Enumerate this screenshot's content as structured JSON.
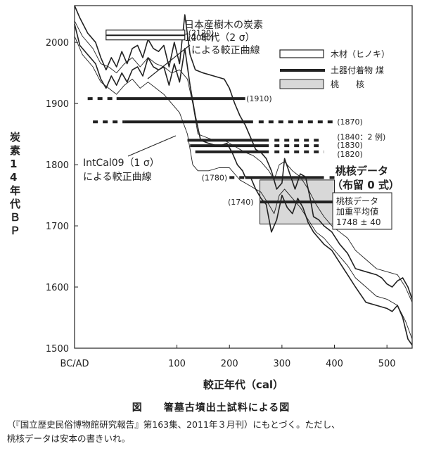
{
  "chart_data": {
    "type": "line",
    "title": "",
    "xlabel": "較正年代（cal）",
    "ylabel": "炭素14年代ＢＰ",
    "xlim": [
      -95,
      548
    ],
    "ylim": [
      1500,
      2060
    ],
    "x_ticks": [
      {
        "value": -100,
        "label": "BC/AD"
      },
      {
        "value": 100,
        "label": "100"
      },
      {
        "value": 200,
        "label": "200"
      },
      {
        "value": 300,
        "label": "300"
      },
      {
        "value": 400,
        "label": "400"
      },
      {
        "value": 500,
        "label": "500"
      }
    ],
    "y_ticks": [
      1500,
      1600,
      1700,
      1800,
      1900,
      2000
    ],
    "grid": false,
    "curves": [
      {
        "name": "日本産樹木 upper",
        "points": [
          [
            -95,
            2060
          ],
          [
            -85,
            2040
          ],
          [
            -70,
            2015
          ],
          [
            -55,
            2000
          ],
          [
            -45,
            1975
          ],
          [
            -35,
            1955
          ],
          [
            -25,
            1975
          ],
          [
            -15,
            1960
          ],
          [
            -5,
            1985
          ],
          [
            5,
            1965
          ],
          [
            15,
            1990
          ],
          [
            25,
            1995
          ],
          [
            35,
            1975
          ],
          [
            45,
            2005
          ],
          [
            55,
            1990
          ],
          [
            65,
            1985
          ],
          [
            75,
            1995
          ],
          [
            85,
            1960
          ],
          [
            95,
            2000
          ],
          [
            105,
            1965
          ],
          [
            115,
            2045
          ],
          [
            125,
            1980
          ],
          [
            135,
            1955
          ],
          [
            150,
            1950
          ],
          [
            170,
            1945
          ],
          [
            190,
            1940
          ],
          [
            200,
            1925
          ],
          [
            210,
            1900
          ],
          [
            220,
            1880
          ],
          [
            230,
            1865
          ],
          [
            240,
            1845
          ],
          [
            250,
            1825
          ],
          [
            260,
            1820
          ],
          [
            270,
            1810
          ],
          [
            280,
            1790
          ],
          [
            290,
            1760
          ],
          [
            300,
            1770
          ],
          [
            305,
            1810
          ],
          [
            315,
            1785
          ],
          [
            325,
            1760
          ],
          [
            335,
            1785
          ],
          [
            345,
            1780
          ],
          [
            355,
            1740
          ],
          [
            360,
            1715
          ],
          [
            370,
            1710
          ],
          [
            380,
            1700
          ],
          [
            395,
            1690
          ],
          [
            410,
            1670
          ],
          [
            425,
            1655
          ],
          [
            440,
            1630
          ],
          [
            460,
            1625
          ],
          [
            480,
            1620
          ],
          [
            490,
            1615
          ],
          [
            500,
            1605
          ],
          [
            510,
            1600
          ],
          [
            520,
            1610
          ],
          [
            530,
            1615
          ],
          [
            540,
            1600
          ],
          [
            548,
            1580
          ]
        ]
      },
      {
        "name": "日本産樹木 lower",
        "points": [
          [
            -95,
            2030
          ],
          [
            -85,
            1995
          ],
          [
            -70,
            1980
          ],
          [
            -55,
            1965
          ],
          [
            -45,
            1940
          ],
          [
            -35,
            1925
          ],
          [
            -25,
            1945
          ],
          [
            -15,
            1930
          ],
          [
            -5,
            1950
          ],
          [
            5,
            1935
          ],
          [
            15,
            1955
          ],
          [
            25,
            1960
          ],
          [
            35,
            1945
          ],
          [
            45,
            1975
          ],
          [
            55,
            1960
          ],
          [
            65,
            1955
          ],
          [
            75,
            1960
          ],
          [
            85,
            1930
          ],
          [
            95,
            1965
          ],
          [
            105,
            1935
          ],
          [
            115,
            1990
          ],
          [
            125,
            1930
          ],
          [
            135,
            1880
          ],
          [
            145,
            1840
          ],
          [
            160,
            1835
          ],
          [
            180,
            1830
          ],
          [
            195,
            1835
          ],
          [
            205,
            1820
          ],
          [
            215,
            1800
          ],
          [
            225,
            1790
          ],
          [
            230,
            1780
          ],
          [
            240,
            1780
          ],
          [
            250,
            1760
          ],
          [
            260,
            1745
          ],
          [
            270,
            1735
          ],
          [
            280,
            1690
          ],
          [
            290,
            1710
          ],
          [
            300,
            1750
          ],
          [
            310,
            1730
          ],
          [
            320,
            1720
          ],
          [
            330,
            1745
          ],
          [
            340,
            1730
          ],
          [
            350,
            1705
          ],
          [
            360,
            1690
          ],
          [
            370,
            1680
          ],
          [
            380,
            1670
          ],
          [
            395,
            1660
          ],
          [
            410,
            1640
          ],
          [
            425,
            1620
          ],
          [
            440,
            1600
          ],
          [
            460,
            1575
          ],
          [
            480,
            1570
          ],
          [
            500,
            1565
          ],
          [
            510,
            1560
          ],
          [
            520,
            1570
          ],
          [
            530,
            1550
          ],
          [
            540,
            1515
          ],
          [
            548,
            1505
          ]
        ]
      },
      {
        "name": "IntCal09 upper",
        "points": [
          [
            -95,
            2035
          ],
          [
            -80,
            2010
          ],
          [
            -60,
            1990
          ],
          [
            -45,
            1965
          ],
          [
            -30,
            1960
          ],
          [
            -15,
            1950
          ],
          [
            0,
            1965
          ],
          [
            15,
            1975
          ],
          [
            30,
            1960
          ],
          [
            45,
            1975
          ],
          [
            60,
            1965
          ],
          [
            75,
            1960
          ],
          [
            90,
            1950
          ],
          [
            105,
            1955
          ],
          [
            120,
            1940
          ],
          [
            130,
            1900
          ],
          [
            140,
            1850
          ],
          [
            155,
            1845
          ],
          [
            170,
            1840
          ],
          [
            190,
            1840
          ],
          [
            210,
            1830
          ],
          [
            230,
            1820
          ],
          [
            245,
            1815
          ],
          [
            260,
            1805
          ],
          [
            275,
            1790
          ],
          [
            285,
            1775
          ],
          [
            295,
            1800
          ],
          [
            305,
            1805
          ],
          [
            320,
            1790
          ],
          [
            335,
            1780
          ],
          [
            350,
            1760
          ],
          [
            365,
            1735
          ],
          [
            380,
            1715
          ],
          [
            395,
            1700
          ],
          [
            410,
            1690
          ],
          [
            425,
            1680
          ],
          [
            440,
            1660
          ],
          [
            460,
            1645
          ],
          [
            480,
            1630
          ],
          [
            500,
            1625
          ],
          [
            520,
            1620
          ],
          [
            535,
            1600
          ],
          [
            548,
            1575
          ]
        ]
      },
      {
        "name": "IntCal09 lower",
        "points": [
          [
            -95,
            2010
          ],
          [
            -80,
            1980
          ],
          [
            -60,
            1960
          ],
          [
            -45,
            1935
          ],
          [
            -30,
            1925
          ],
          [
            -15,
            1915
          ],
          [
            0,
            1930
          ],
          [
            15,
            1940
          ],
          [
            30,
            1925
          ],
          [
            45,
            1935
          ],
          [
            60,
            1925
          ],
          [
            75,
            1915
          ],
          [
            90,
            1900
          ],
          [
            105,
            1885
          ],
          [
            120,
            1850
          ],
          [
            130,
            1800
          ],
          [
            140,
            1790
          ],
          [
            160,
            1790
          ],
          [
            180,
            1795
          ],
          [
            200,
            1795
          ],
          [
            220,
            1775
          ],
          [
            240,
            1765
          ],
          [
            260,
            1755
          ],
          [
            275,
            1735
          ],
          [
            285,
            1720
          ],
          [
            295,
            1750
          ],
          [
            305,
            1760
          ],
          [
            320,
            1745
          ],
          [
            335,
            1730
          ],
          [
            350,
            1710
          ],
          [
            365,
            1690
          ],
          [
            380,
            1680
          ],
          [
            395,
            1665
          ],
          [
            410,
            1650
          ],
          [
            425,
            1635
          ],
          [
            440,
            1615
          ],
          [
            460,
            1600
          ],
          [
            480,
            1585
          ],
          [
            500,
            1580
          ],
          [
            520,
            1570
          ],
          [
            535,
            1545
          ],
          [
            548,
            1515
          ]
        ]
      }
    ],
    "boxes": [
      {
        "label": "(2120)",
        "bp": 2120,
        "x_from": -35,
        "x_to": 115,
        "y_from": 2012,
        "y_to": 2020
      },
      {
        "label": "(2080)",
        "bp": 2080,
        "x_from": -35,
        "x_to": 115,
        "y_from": 2004,
        "y_to": 2011
      }
    ],
    "bars": [
      {
        "label": "(1910)",
        "bp": 1910,
        "y": 1908,
        "x_from": -15,
        "x_to": 230,
        "dashed_from": -70
      },
      {
        "label": "(1870)",
        "bp": 1870,
        "y": 1870,
        "x_from": 0,
        "x_to": 245,
        "dashed_from": -60,
        "dashed_to": 400
      },
      {
        "label": "(1840：2 例)",
        "bp": 1840,
        "y": 1840,
        "x_from": 120,
        "x_to": 275,
        "dashed_from": 300,
        "dashed_to": 370
      },
      {
        "label": "(1830)",
        "bp": 1830,
        "y": 1831,
        "x_from": 125,
        "x_to": 275,
        "dashed_from": 300,
        "dashed_to": 370
      },
      {
        "label": "(1820)",
        "bp": 1820,
        "y": 1821,
        "x_from": 135,
        "x_to": 275,
        "dashed_from": 300,
        "dashed_to": 380
      },
      {
        "label": "(1780)",
        "bp": 1780,
        "y": 1779,
        "x_from": 230,
        "x_to": 380,
        "dashed_from": 200,
        "dashed_to": 400
      },
      {
        "label": "(1740)",
        "bp": 1740,
        "y": 1739,
        "x_from": 258,
        "x_to": 400
      }
    ],
    "peach_box": {
      "x_from": 258,
      "x_to": 400,
      "y_from": 1703,
      "y_to": 1775
    },
    "annotations": {
      "wood_title": "日本産樹木の炭素",
      "wood_line2": "14 年代（2 σ）",
      "wood_line3": "による較正曲線",
      "intcal_line1": "IntCal09（1 σ）",
      "intcal_line2": "による較正曲線",
      "peach_title": "桃核データ",
      "peach_sub": "（布留 0 式）",
      "peach_info1": "桃核データ",
      "peach_info2": "加重平均値",
      "peach_info3": "1748 ± 40"
    },
    "legend": {
      "position": "top-right",
      "items": [
        {
          "label": "木材（ヒノキ）",
          "marker": "open-box"
        },
        {
          "label": "土器付着物  煤",
          "marker": "thick-line"
        },
        {
          "label": "桃　　核",
          "marker": "gray-box"
        }
      ]
    }
  },
  "caption": {
    "title": "図　　箸墓古墳出土試料による図",
    "line1": "（『国立歴史民俗博物館研究報告』第163集、2011年３月刊）にもとづく。ただし、",
    "line2": "桃核データは安本の書きいれ。"
  },
  "colors": {
    "ink": "#222222",
    "box_fill": "#d8d8d8",
    "paper": "#ffffff"
  }
}
